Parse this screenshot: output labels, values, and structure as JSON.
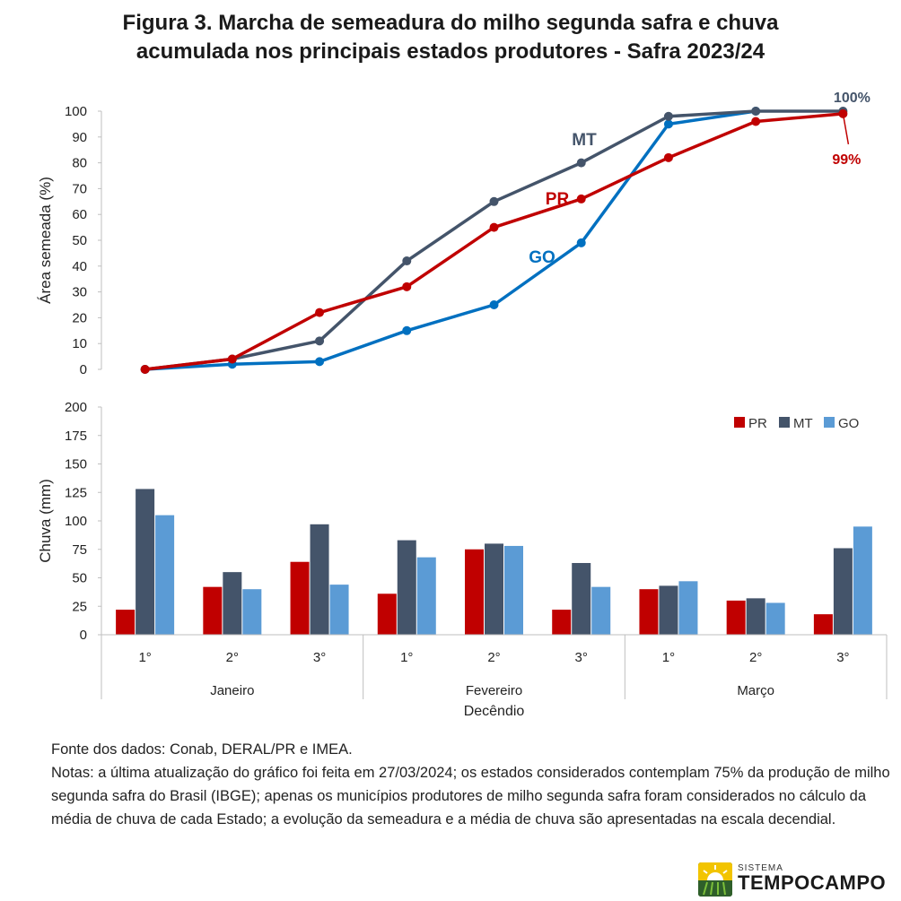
{
  "title": {
    "line1": "Figura 3. Marcha de semeadura do milho segunda safra e chuva",
    "line2": "acumulada nos principais estados produtores - Safra 2023/24"
  },
  "colors": {
    "PR": "#c00000",
    "MT": "#44546a",
    "GO": "#0070c0",
    "GO_bar": "#5b9bd5"
  },
  "chart_data": [
    {
      "type": "line",
      "ylabel": "Área semeada (%)",
      "ylim": [
        0,
        100
      ],
      "yticks": [
        "0",
        "10",
        "20",
        "30",
        "40",
        "50",
        "60",
        "70",
        "80",
        "90",
        "100"
      ],
      "x": [
        "Janeiro 1°",
        "Janeiro 2°",
        "Janeiro 3°",
        "Fevereiro 1°",
        "Fevereiro 2°",
        "Fevereiro 3°",
        "Março 1°",
        "Março 2°",
        "Março 3°"
      ],
      "series": [
        {
          "name": "MT",
          "values": [
            0,
            4,
            11,
            42,
            65,
            80,
            98,
            100,
            100
          ]
        },
        {
          "name": "PR",
          "values": [
            0,
            4,
            22,
            32,
            55,
            66,
            82,
            96,
            99
          ]
        },
        {
          "name": "GO",
          "values": [
            0,
            2,
            3,
            15,
            25,
            49,
            95,
            100,
            null
          ]
        }
      ],
      "annotations": [
        {
          "text": "100%",
          "series": "MT"
        },
        {
          "text": "99%",
          "series": "PR"
        }
      ]
    },
    {
      "type": "bar",
      "ylabel": "Chuva (mm)",
      "ylim": [
        0,
        200
      ],
      "yticks": [
        "0",
        "25",
        "50",
        "75",
        "100",
        "125",
        "150",
        "175",
        "200"
      ],
      "xlabel": "Decêndio",
      "decendios": [
        "1°",
        "2°",
        "3°",
        "1°",
        "2°",
        "3°",
        "1°",
        "2°",
        "3°"
      ],
      "months": [
        "Janeiro",
        "Fevereiro",
        "Março"
      ],
      "legend_position": "top-right",
      "series": [
        {
          "name": "PR",
          "values": [
            22,
            42,
            64,
            36,
            75,
            22,
            40,
            30,
            18
          ]
        },
        {
          "name": "MT",
          "values": [
            128,
            55,
            97,
            83,
            80,
            63,
            43,
            32,
            76
          ]
        },
        {
          "name": "GO",
          "values": [
            105,
            40,
            44,
            68,
            78,
            42,
            47,
            28,
            95
          ]
        }
      ]
    }
  ],
  "notes": {
    "source": "Fonte dos dados: Conab, DERAL/PR e IMEA.",
    "text": "Notas: a última atualização do gráfico foi feita em 27/03/2024; os estados considerados contemplam 75% da produção de milho segunda safra do Brasil (IBGE); apenas os municípios produtores de milho segunda safra foram considerados no cálculo da média de chuva de cada Estado; a evolução da semeadura e a média de chuva são apresentadas na escala decendial."
  },
  "logo": {
    "small": "SISTEMA",
    "big": "TEMPOCAMPO"
  }
}
